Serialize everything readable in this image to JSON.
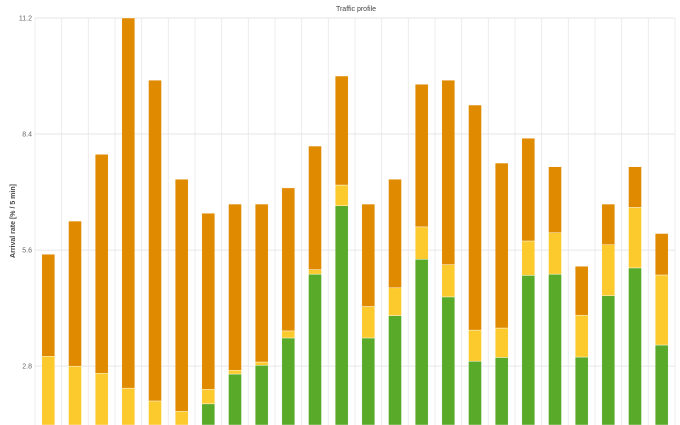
{
  "chart_data": {
    "type": "bar",
    "stacked": true,
    "title": "Traffic profile",
    "xlabel": "",
    "ylabel": "Arrival rate [% / 5 min]",
    "ylim": [
      1.38,
      11.2
    ],
    "yticks": [
      "2.8",
      "5.6",
      "8.4",
      "11.2"
    ],
    "grid": true,
    "legend": "none",
    "categories_count": 24,
    "series": [
      {
        "color": "#5aaa2a",
        "values": [
          0,
          0,
          0,
          0,
          0,
          0,
          1.89,
          2.61,
          2.82,
          3.48,
          5.02,
          6.67,
          3.48,
          4.02,
          5.38,
          4.47,
          2.92,
          3.01,
          4.99,
          5.02,
          3.02,
          4.5,
          5.17,
          3.31
        ]
      },
      {
        "color": "#fdca2e",
        "values": [
          3.04,
          2.8,
          2.63,
          2.27,
          1.96,
          1.71,
          0.35,
          0.09,
          0.08,
          0.17,
          0.11,
          0.5,
          0.76,
          0.67,
          0.78,
          0.78,
          0.75,
          0.71,
          0.83,
          1.0,
          1.01,
          1.23,
          1.46,
          1.69
        ]
      },
      {
        "color": "#e08a00",
        "values": [
          2.46,
          3.5,
          5.28,
          8.93,
          7.74,
          5.6,
          4.25,
          4.01,
          3.81,
          3.45,
          2.98,
          2.63,
          2.47,
          2.62,
          3.44,
          4.45,
          5.43,
          3.98,
          2.48,
          1.59,
          1.18,
          0.98,
          0.98,
          1.0
        ]
      }
    ]
  }
}
